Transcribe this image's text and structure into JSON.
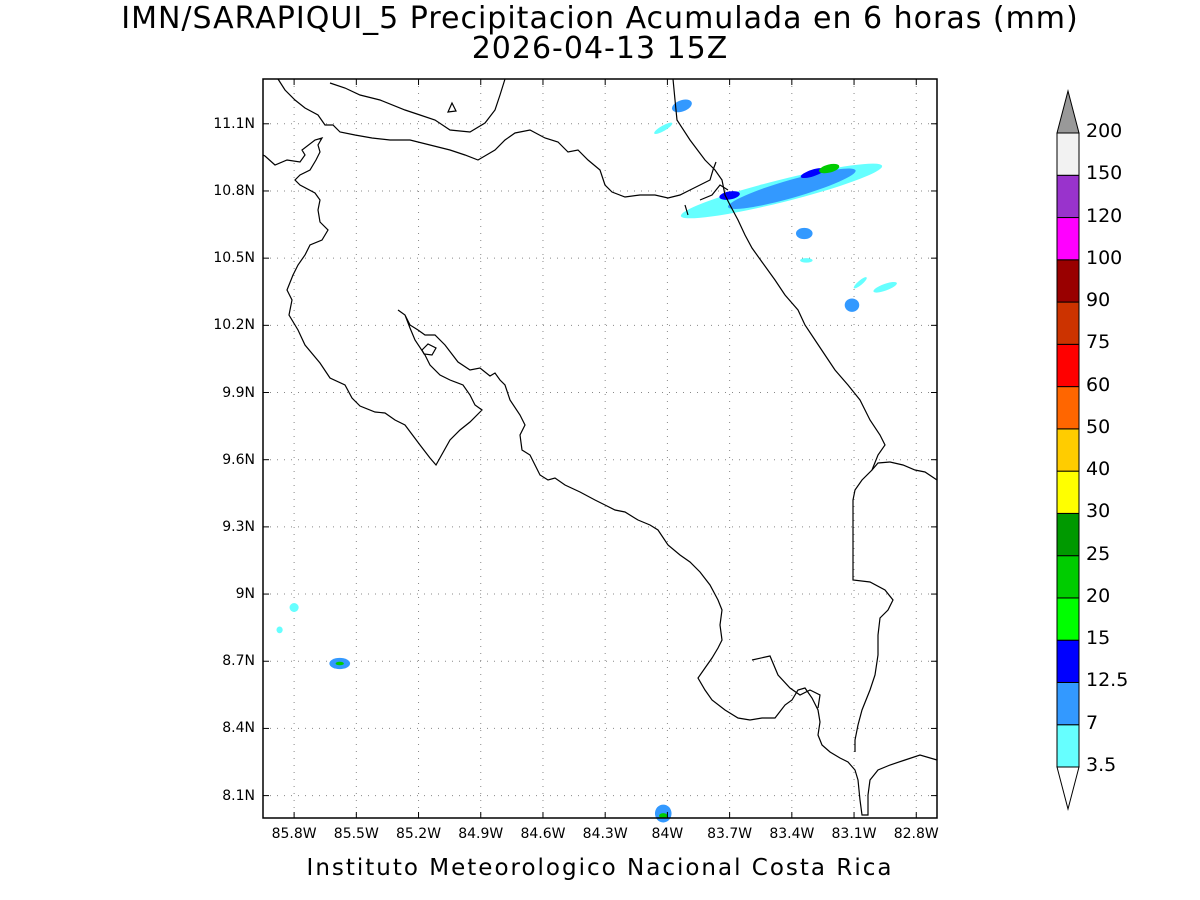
{
  "header": {
    "title": "IMN/SARAPIQUI_5 Precipitacion Acumulada en 6 horas (mm)",
    "subtitle": "2026-04-13 15Z"
  },
  "footer": {
    "credit": "Instituto Meteorologico Nacional Costa Rica"
  },
  "axes": {
    "lat_ticks": [
      "11.1N",
      "10.8N",
      "10.5N",
      "10.2N",
      "9.9N",
      "9.6N",
      "9.3N",
      "9N",
      "8.7N",
      "8.4N",
      "8.1N"
    ],
    "lon_ticks": [
      "85.8W",
      "85.5W",
      "85.2W",
      "84.9W",
      "84.6W",
      "84.3W",
      "84W",
      "83.7W",
      "83.4W",
      "83.1W",
      "82.8W"
    ],
    "grid": "dotted"
  },
  "colorbar": {
    "labels": [
      "3.5",
      "7",
      "12.5",
      "15",
      "20",
      "25",
      "30",
      "40",
      "50",
      "60",
      "75",
      "90",
      "100",
      "120",
      "150",
      "200"
    ],
    "colors": [
      "#66ffff",
      "#3399ff",
      "#0000ff",
      "#00ff00",
      "#00cc00",
      "#009900",
      "#ffff00",
      "#ffcc00",
      "#ff6600",
      "#ff0000",
      "#cc3300",
      "#990000",
      "#ff00ff",
      "#9933cc",
      "#f2f2f2",
      "#999999"
    ],
    "top_arrow_color": "#999999",
    "bottom_arrow_color": "#ffffff"
  },
  "chart_data": {
    "type": "heatmap",
    "title": "IMN/SARAPIQUI_5 Precipitacion Acumulada en 6 horas (mm)",
    "subtitle": "2026-04-13 15Z",
    "xlim": [
      -85.95,
      -82.7
    ],
    "ylim": [
      8.0,
      11.3
    ],
    "precip_areas": [
      {
        "lon": -83.45,
        "lat": 10.8,
        "rlon": 0.5,
        "rlat": 0.05,
        "rot": -14,
        "level": "3.5"
      },
      {
        "lon": -83.4,
        "lat": 10.81,
        "rlon": 0.32,
        "rlat": 0.04,
        "rot": -16,
        "level": "7"
      },
      {
        "lon": -83.7,
        "lat": 10.78,
        "rlon": 0.05,
        "rlat": 0.018,
        "rot": -10,
        "level": "12.5"
      },
      {
        "lon": -83.3,
        "lat": 10.88,
        "rlon": 0.06,
        "rlat": 0.015,
        "rot": -18,
        "level": "12.5"
      },
      {
        "lon": -83.22,
        "lat": 10.9,
        "rlon": 0.05,
        "rlat": 0.018,
        "rot": -14,
        "level": "20"
      },
      {
        "lon": -83.93,
        "lat": 11.18,
        "rlon": 0.05,
        "rlat": 0.025,
        "rot": -20,
        "level": "7"
      },
      {
        "lon": -84.02,
        "lat": 11.08,
        "rlon": 0.05,
        "rlat": 0.012,
        "rot": -30,
        "level": "3.5"
      },
      {
        "lon": -83.34,
        "lat": 10.61,
        "rlon": 0.04,
        "rlat": 0.025,
        "rot": 0,
        "level": "7"
      },
      {
        "lon": -83.33,
        "lat": 10.49,
        "rlon": 0.03,
        "rlat": 0.01,
        "rot": 0,
        "level": "3.5"
      },
      {
        "lon": -83.11,
        "lat": 10.29,
        "rlon": 0.035,
        "rlat": 0.03,
        "rot": 0,
        "level": "7"
      },
      {
        "lon": -82.95,
        "lat": 10.37,
        "rlon": 0.06,
        "rlat": 0.015,
        "rot": -20,
        "level": "3.5"
      },
      {
        "lon": -83.07,
        "lat": 10.39,
        "rlon": 0.04,
        "rlat": 0.01,
        "rot": -40,
        "level": "3.5"
      },
      {
        "lon": -85.58,
        "lat": 8.69,
        "rlon": 0.05,
        "rlat": 0.025,
        "rot": 0,
        "level": "7"
      },
      {
        "lon": -85.58,
        "lat": 8.69,
        "rlon": 0.02,
        "rlat": 0.008,
        "rot": 0,
        "level": "20"
      },
      {
        "lon": -85.8,
        "lat": 8.94,
        "rlon": 0.022,
        "rlat": 0.02,
        "rot": 0,
        "level": "3.5"
      },
      {
        "lon": -85.87,
        "lat": 8.84,
        "rlon": 0.015,
        "rlat": 0.015,
        "rot": 0,
        "level": "3.5"
      },
      {
        "lon": -84.02,
        "lat": 8.02,
        "rlon": 0.04,
        "rlat": 0.04,
        "rot": 0,
        "level": "7"
      },
      {
        "lon": -84.02,
        "lat": 8.01,
        "rlon": 0.02,
        "rlat": 0.012,
        "rot": 0,
        "level": "20"
      }
    ]
  }
}
